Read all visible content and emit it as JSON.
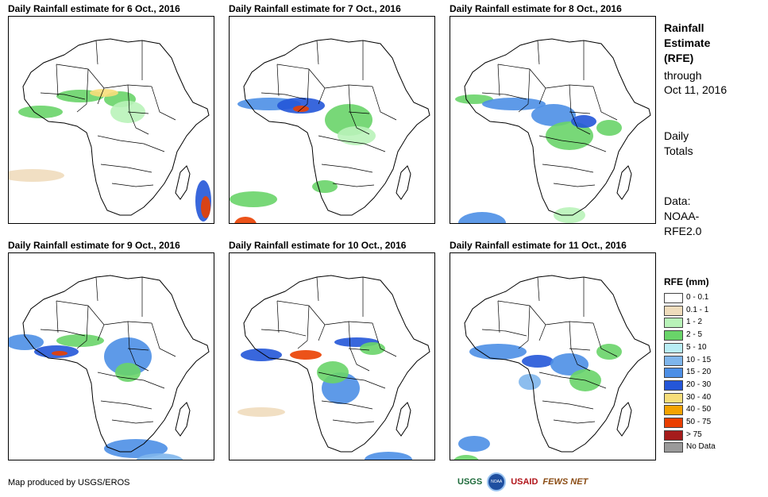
{
  "panels": [
    {
      "title": "Daily Rainfall estimate for 6 Oct., 2016"
    },
    {
      "title": "Daily Rainfall estimate for 7 Oct., 2016"
    },
    {
      "title": "Daily Rainfall estimate for 8 Oct., 2016"
    },
    {
      "title": "Daily Rainfall estimate for 9 Oct., 2016"
    },
    {
      "title": "Daily Rainfall estimate for 10 Oct., 2016"
    },
    {
      "title": "Daily Rainfall estimate for 11 Oct., 2016"
    }
  ],
  "side": {
    "title_lines": [
      "Rainfall",
      "Estimate",
      "(RFE)"
    ],
    "through": "through",
    "date": "Oct 11, 2016",
    "daily1": "Daily",
    "daily2": "Totals",
    "data1": "Data:",
    "data2": "NOAA-",
    "data3": "RFE2.0"
  },
  "legend": {
    "title": "RFE (mm)",
    "items": [
      {
        "label": "0 - 0.1",
        "color": "#ffffff"
      },
      {
        "label": "0.1 - 1",
        "color": "#efdcbc"
      },
      {
        "label": "1 - 2",
        "color": "#b9f3b9"
      },
      {
        "label": "2 - 5",
        "color": "#69d469"
      },
      {
        "label": "5 - 10",
        "color": "#b9eef5"
      },
      {
        "label": "10 - 15",
        "color": "#7fb6ec"
      },
      {
        "label": "15 - 20",
        "color": "#4d8fe6"
      },
      {
        "label": "20 - 30",
        "color": "#2456d8"
      },
      {
        "label": "30 - 40",
        "color": "#f7de7a"
      },
      {
        "label": "40 - 50",
        "color": "#f5a300"
      },
      {
        "label": "50 - 75",
        "color": "#ea3f00"
      },
      {
        "label": "> 75",
        "color": "#a51c1c"
      },
      {
        "label": "No Data",
        "color": "#9a9a9a"
      }
    ]
  },
  "credit": "Map produced by USGS/EROS",
  "logos": {
    "usgs": "USGS",
    "noaa": "NOAA",
    "usaid": "USAID",
    "fews": "FEWS NET"
  }
}
